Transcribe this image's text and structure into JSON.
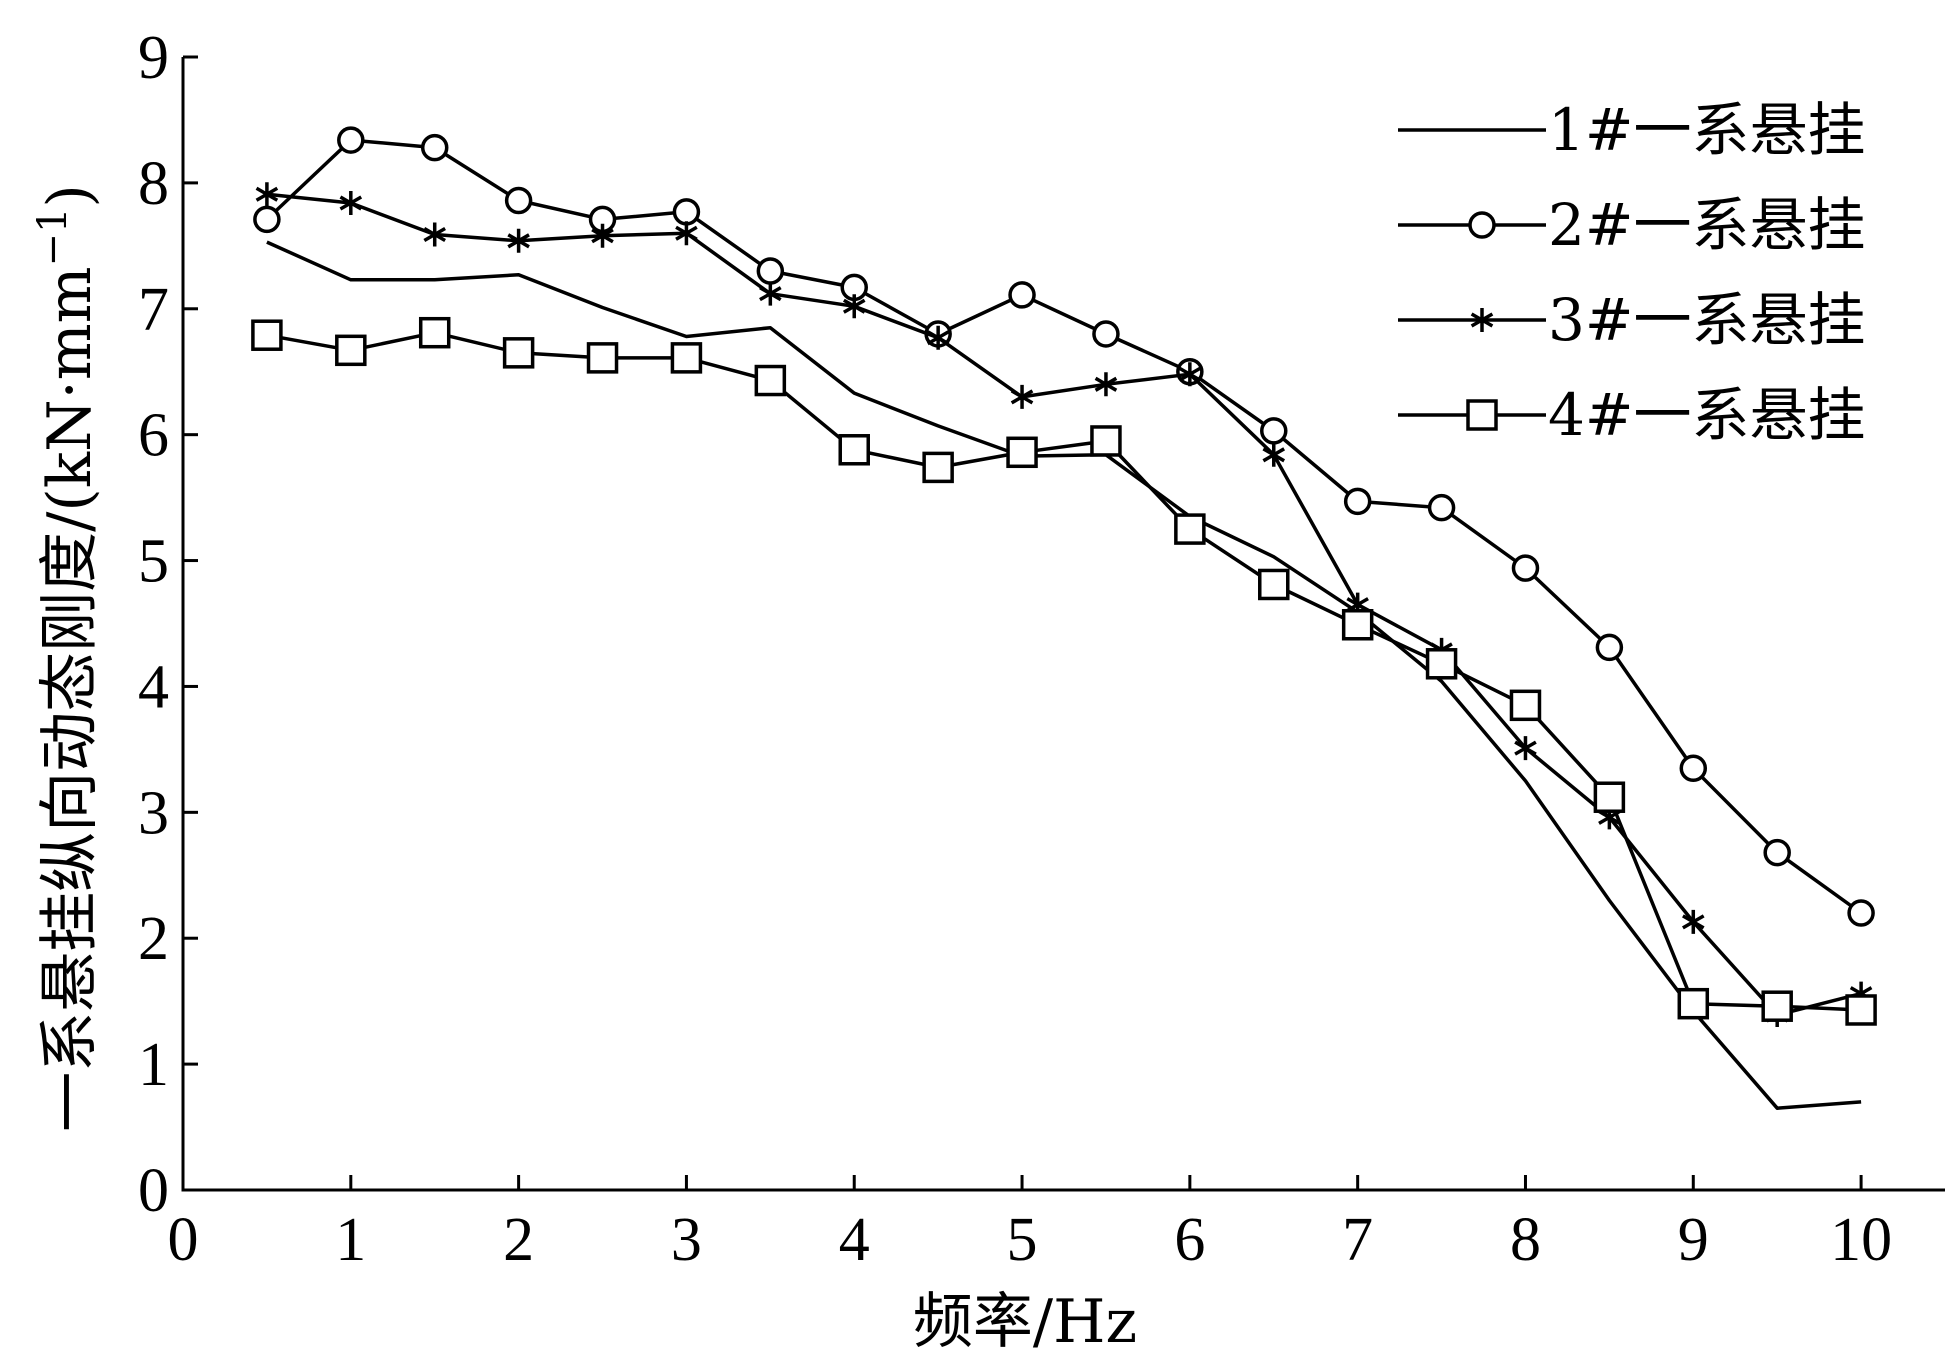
{
  "chart_data": {
    "type": "line",
    "xlabel": "频率/Hz",
    "ylabel": "一系悬挂纵向动态刚度/(kN·mm",
    "ylabel_sup": "−1",
    "ylabel_close": ")",
    "xlim": [
      0,
      10.5
    ],
    "ylim": [
      0,
      9
    ],
    "xticks": [
      0,
      1,
      2,
      3,
      4,
      5,
      6,
      7,
      8,
      9,
      10
    ],
    "yticks": [
      0,
      1,
      2,
      3,
      4,
      5,
      6,
      7,
      8,
      9
    ],
    "x": [
      0.5,
      1,
      1.5,
      2,
      2.5,
      3,
      3.5,
      4,
      4.5,
      5,
      5.5,
      6,
      6.5,
      7,
      7.5,
      8,
      8.5,
      9,
      9.5,
      10
    ],
    "legend_position": "top-right",
    "series": [
      {
        "name": "1#一系悬挂",
        "marker": "none",
        "values": [
          7.53,
          7.23,
          7.23,
          7.27,
          7.01,
          6.78,
          6.85,
          6.33,
          6.07,
          5.83,
          5.84,
          5.35,
          5.03,
          4.59,
          4.04,
          3.25,
          2.3,
          1.42,
          0.65,
          0.7
        ]
      },
      {
        "name": "2#一系悬挂",
        "marker": "circle",
        "values": [
          7.71,
          8.34,
          8.28,
          7.86,
          7.71,
          7.77,
          7.3,
          7.17,
          6.8,
          7.11,
          6.8,
          6.5,
          6.03,
          5.47,
          5.42,
          4.94,
          4.31,
          3.35,
          2.68,
          2.2
        ]
      },
      {
        "name": "3#一系悬挂",
        "marker": "star",
        "values": [
          7.91,
          7.84,
          7.59,
          7.54,
          7.58,
          7.6,
          7.12,
          7.02,
          6.77,
          6.3,
          6.4,
          6.48,
          5.84,
          4.65,
          4.29,
          3.51,
          2.96,
          2.13,
          1.39,
          1.56
        ]
      },
      {
        "name": "4#一系悬挂",
        "marker": "square",
        "values": [
          6.79,
          6.67,
          6.81,
          6.65,
          6.61,
          6.61,
          6.43,
          5.88,
          5.74,
          5.86,
          5.95,
          5.25,
          4.81,
          4.49,
          4.18,
          3.85,
          3.12,
          1.48,
          1.46,
          1.43
        ]
      }
    ]
  }
}
